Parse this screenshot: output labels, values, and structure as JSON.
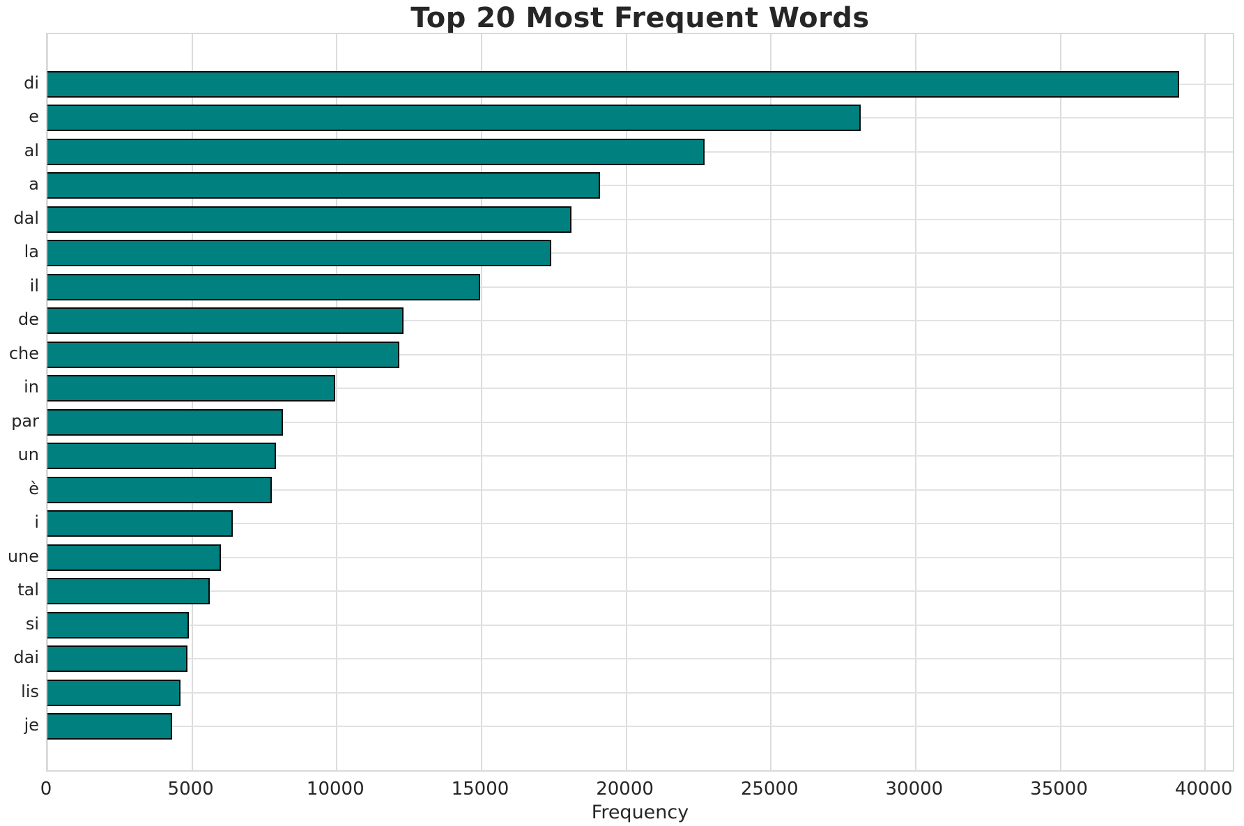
{
  "figure": {
    "title": "Top 20 Most Frequent Words",
    "xlabel": "Frequency"
  },
  "chart_data": {
    "type": "bar",
    "orientation": "horizontal",
    "title": "Top 20 Most Frequent Words",
    "xlabel": "Frequency",
    "ylabel": "",
    "categories": [
      "di",
      "e",
      "al",
      "a",
      "dal",
      "la",
      "il",
      "de",
      "che",
      "in",
      "par",
      "un",
      "è",
      "i",
      "une",
      "tal",
      "si",
      "dai",
      "lis",
      "je"
    ],
    "values": [
      39100,
      28100,
      22700,
      19100,
      18100,
      17400,
      14950,
      12300,
      12150,
      9950,
      8150,
      7900,
      7750,
      6400,
      6000,
      5600,
      4900,
      4850,
      4600,
      4300
    ],
    "xticks": [
      0,
      5000,
      10000,
      15000,
      20000,
      25000,
      30000,
      35000,
      40000
    ],
    "xlim": [
      0,
      41055
    ],
    "grid": true,
    "legend": false,
    "bar_color": "#00807f",
    "bar_edge_color": "#0a0a0a",
    "grid_color": "#dcdcdc",
    "background_color": "#ffffff"
  }
}
